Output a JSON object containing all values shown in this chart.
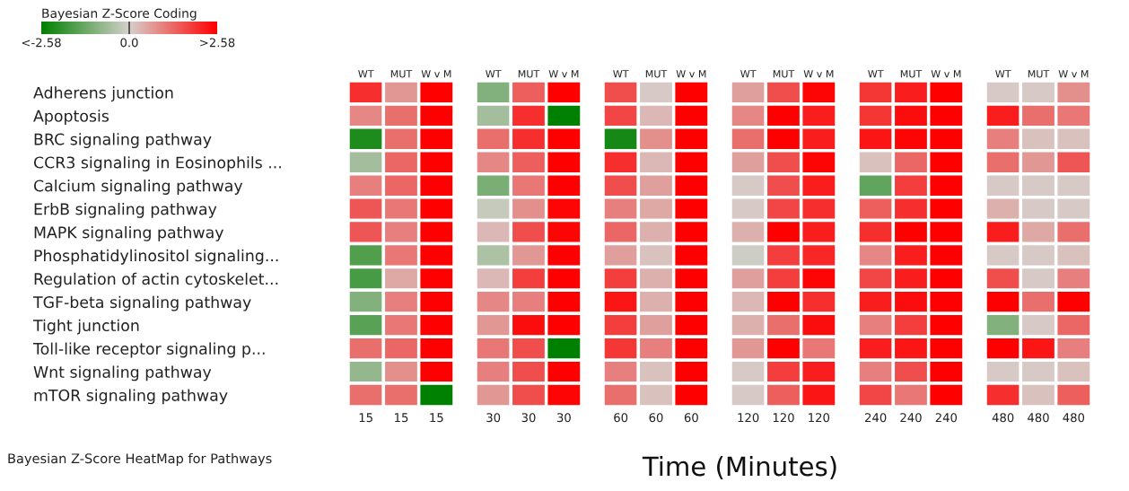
{
  "chart_data": {
    "type": "heatmap",
    "title": "Bayesian Z-Score HeatMap for Pathways",
    "xlabel": "Time (Minutes)",
    "categories": [
      "WT",
      "MUT",
      "W v M",
      "WT",
      "MUT",
      "W v M",
      "WT",
      "MUT",
      "W v M",
      "WT",
      "MUT",
      "W v M",
      "WT",
      "MUT",
      "W v M",
      "WT",
      "MUT",
      "W v M"
    ],
    "annotations": [
      "15",
      "15",
      "15",
      "30",
      "30",
      "30",
      "60",
      "60",
      "60",
      "120",
      "120",
      "120",
      "240",
      "240",
      "240",
      "480",
      "480",
      "480"
    ],
    "y_categories": [
      "Adherens junction",
      "Apoptosis",
      "BRC signaling pathway",
      "CCR3 signaling in Eosinophils ...",
      "Calcium signaling pathway",
      "ErbB signaling pathway",
      "MAPK signaling pathway",
      "Phosphatidylinositol signaling...",
      "Regulation of actin cytoskelet...",
      "TGF-beta signaling pathway",
      "Tight junction",
      "Toll-like receptor signaling p...",
      "Wnt signaling pathway",
      "mTOR signaling pathway"
    ],
    "cells": [
      [
        2.0,
        0.7,
        2.58,
        -1.0,
        1.4,
        2.58,
        1.6,
        0.1,
        2.58,
        0.6,
        1.6,
        2.5,
        1.9,
        2.2,
        2.58,
        0.1,
        0.1,
        0.8
      ],
      [
        0.9,
        1.2,
        2.58,
        -0.6,
        2.0,
        -2.58,
        1.7,
        0.3,
        2.58,
        0.9,
        2.58,
        2.2,
        1.9,
        2.4,
        2.58,
        2.2,
        1.2,
        1.1
      ],
      [
        -2.2,
        1.2,
        2.58,
        1.2,
        2.0,
        2.58,
        -2.3,
        0.8,
        2.58,
        1.2,
        2.58,
        2.2,
        2.3,
        2.5,
        2.58,
        1.0,
        0.2,
        0.2
      ],
      [
        -0.6,
        1.3,
        2.58,
        0.9,
        1.4,
        2.58,
        2.0,
        0.3,
        2.58,
        0.6,
        1.6,
        2.5,
        0.2,
        1.3,
        2.58,
        1.2,
        0.7,
        1.5
      ],
      [
        1.0,
        1.3,
        2.58,
        -1.1,
        1.1,
        2.58,
        1.6,
        0.6,
        2.58,
        0.1,
        1.6,
        2.2,
        -1.4,
        1.8,
        2.58,
        0.1,
        0.1,
        0.1
      ],
      [
        1.5,
        1.1,
        2.58,
        -0.2,
        0.8,
        2.5,
        1.0,
        0.5,
        2.58,
        0.1,
        1.7,
        2.0,
        1.4,
        2.0,
        2.58,
        0.4,
        0.1,
        0.1
      ],
      [
        1.5,
        1.0,
        2.58,
        0.3,
        1.6,
        2.5,
        1.3,
        0.4,
        2.58,
        0.4,
        2.58,
        2.2,
        2.0,
        2.58,
        2.58,
        2.2,
        0.5,
        1.2
      ],
      [
        -1.6,
        1.1,
        2.58,
        -0.5,
        0.7,
        2.58,
        0.6,
        0.2,
        2.58,
        -0.1,
        1.8,
        2.1,
        0.9,
        2.2,
        2.58,
        0.1,
        0.1,
        0.2
      ],
      [
        -1.7,
        0.5,
        2.58,
        0.3,
        1.8,
        2.58,
        1.8,
        0.4,
        2.58,
        0.6,
        1.8,
        2.5,
        1.7,
        2.2,
        2.58,
        1.6,
        0.1,
        1.0
      ],
      [
        -1.0,
        1.0,
        2.58,
        0.9,
        1.0,
        2.58,
        2.3,
        0.4,
        2.58,
        0.3,
        2.58,
        2.0,
        2.2,
        2.4,
        2.58,
        2.58,
        1.2,
        2.58
      ],
      [
        -1.5,
        1.1,
        2.58,
        0.7,
        2.4,
        2.58,
        1.8,
        0.6,
        2.58,
        0.4,
        1.2,
        2.4,
        1.0,
        1.8,
        2.58,
        -1.0,
        0.1,
        1.3
      ],
      [
        1.2,
        1.3,
        2.58,
        1.1,
        1.6,
        -2.58,
        1.9,
        1.0,
        2.58,
        0.7,
        2.58,
        1.1,
        2.2,
        2.3,
        2.58,
        2.58,
        2.3,
        1.0
      ],
      [
        -0.8,
        0.8,
        2.58,
        1.0,
        1.6,
        2.58,
        1.0,
        0.2,
        2.58,
        0.1,
        1.8,
        2.2,
        1.0,
        1.6,
        2.58,
        0.1,
        0.1,
        0.2
      ],
      [
        1.2,
        1.2,
        -2.58,
        0.7,
        1.6,
        2.5,
        1.2,
        0.2,
        2.58,
        0.1,
        1.4,
        2.3,
        1.7,
        1.1,
        2.58,
        2.0,
        0.2,
        1.4
      ]
    ],
    "clim": [
      -2.58,
      2.58
    ],
    "cticks": [
      {
        "value": -2.58,
        "label": "<-2.58"
      },
      {
        "value": 0,
        "label": "0.0"
      },
      {
        "value": 2.58,
        "label": ">2.58"
      }
    ],
    "clabel": "Bayesian Z-Score Coding"
  }
}
